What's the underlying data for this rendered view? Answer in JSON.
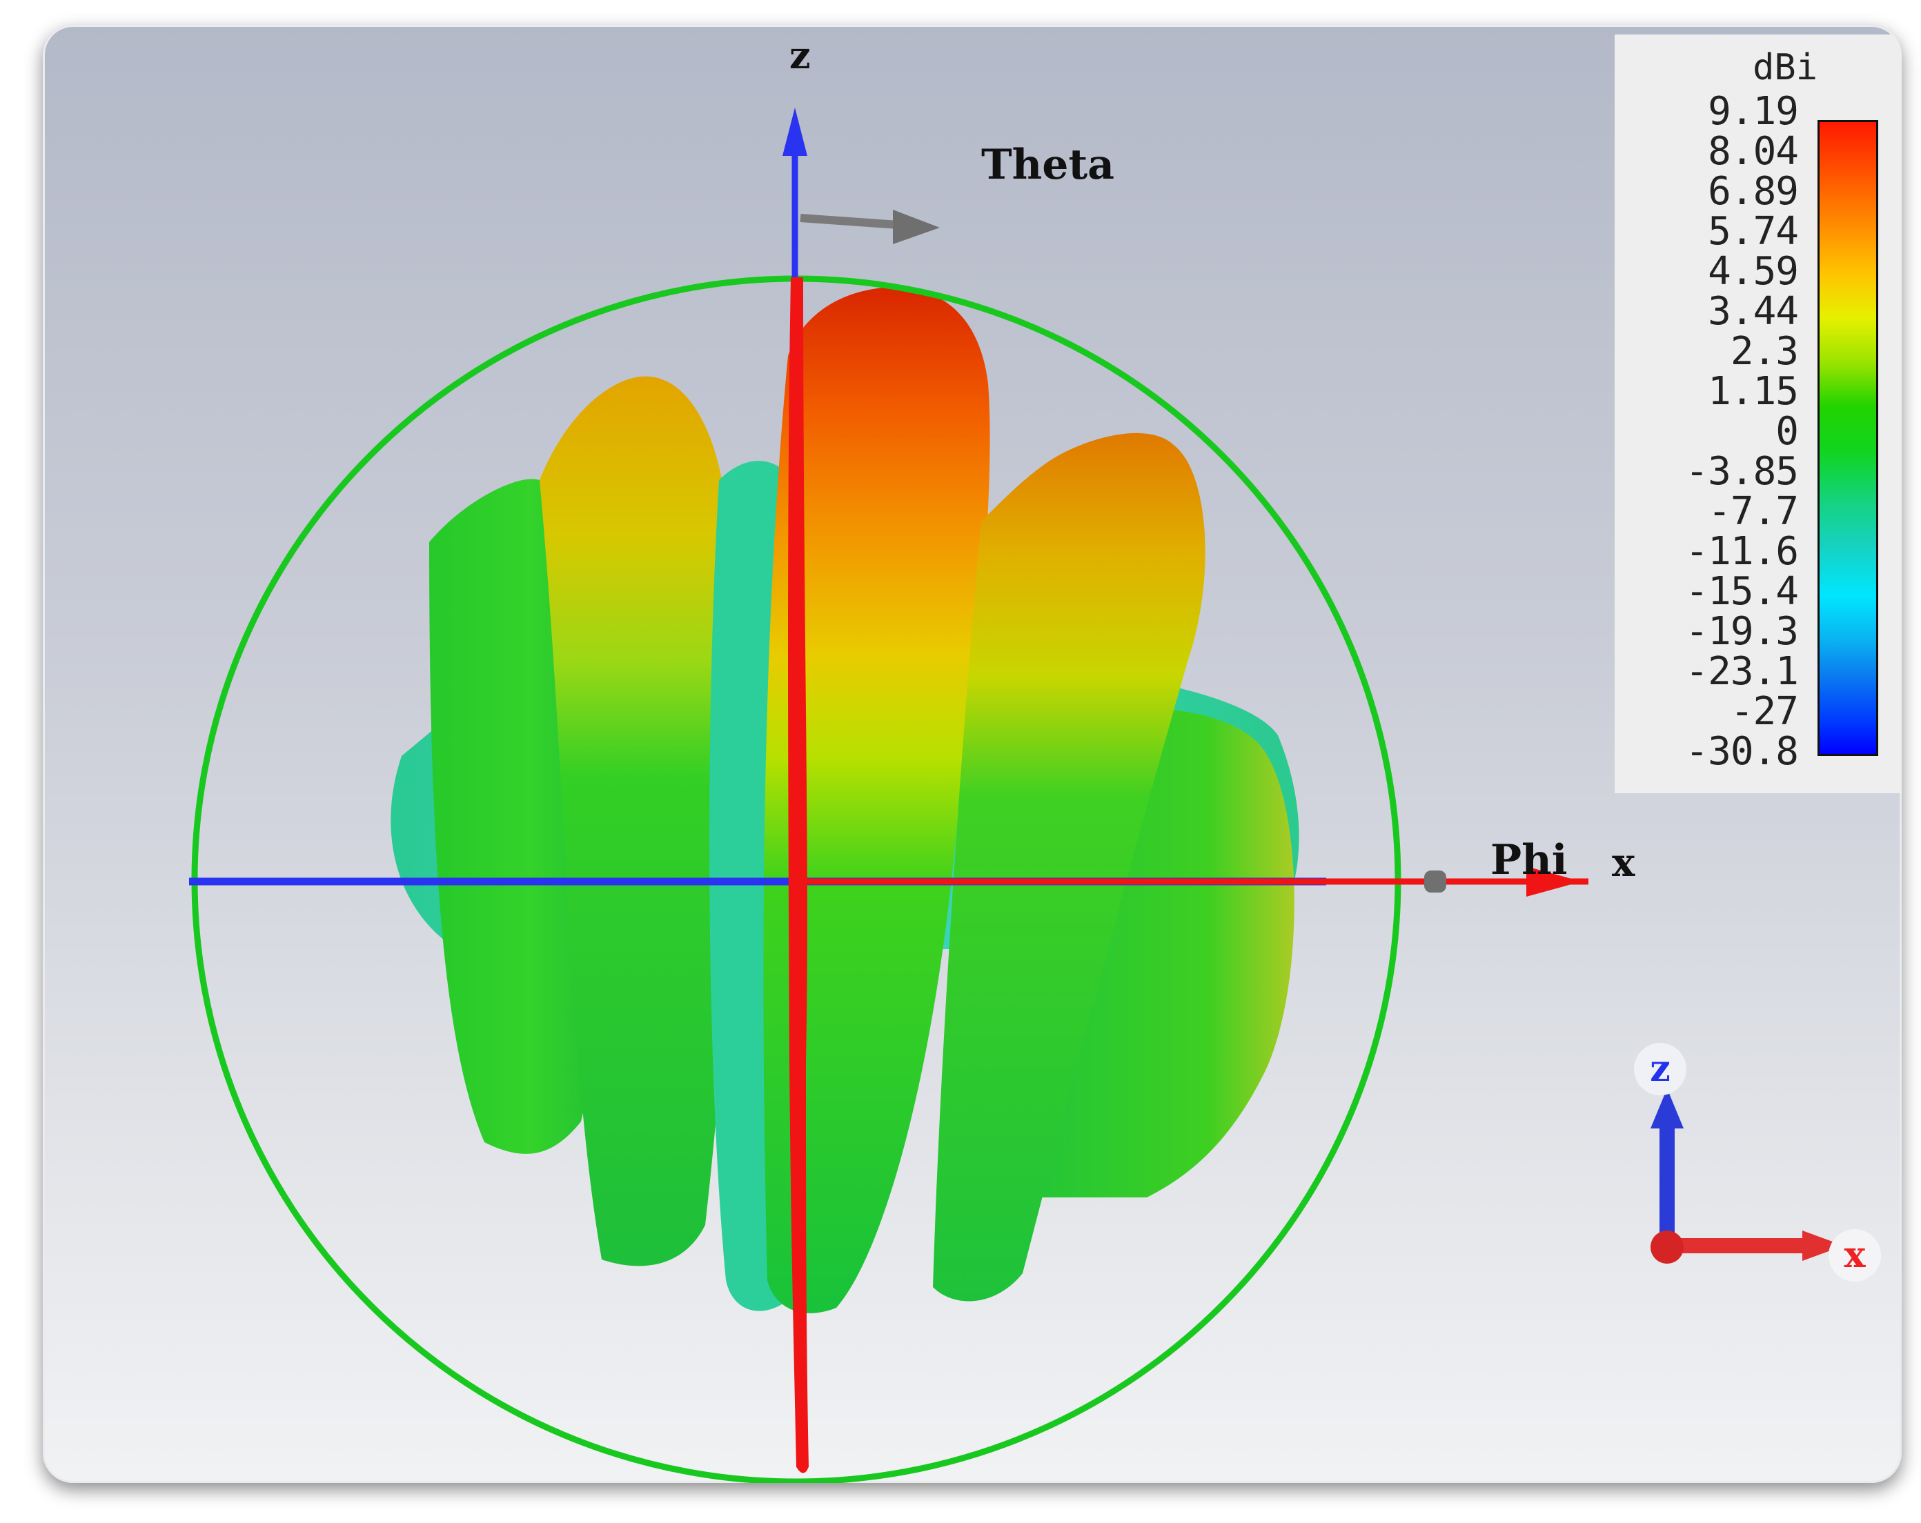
{
  "axes": {
    "z_label": "z",
    "theta_label": "Theta",
    "phi_label": "Phi",
    "x_label": "x"
  },
  "legend": {
    "unit": "dBi",
    "ticks": [
      "9.19",
      "8.04",
      "6.89",
      "5.74",
      "4.59",
      "3.44",
      "2.3",
      "1.15",
      "0",
      "-3.85",
      "-7.7",
      "-11.6",
      "-15.4",
      "-19.3",
      "-23.1",
      "-27",
      "-30.8"
    ],
    "colors": [
      "#ff1a00",
      "#ff8a00",
      "#e6f000",
      "#22d300",
      "#17d1c0",
      "#00e6ff",
      "#0000ff"
    ]
  },
  "orientation_triad": {
    "z_label": "z",
    "x_label": "x"
  },
  "colors": {
    "axis_blue": "#2a33f0",
    "axis_red": "#f01414",
    "sphere_green": "#19c81e",
    "pattern_peak": "#e63a00",
    "pattern_mid": "#2fd12a",
    "pattern_low": "#2bcfb0"
  }
}
